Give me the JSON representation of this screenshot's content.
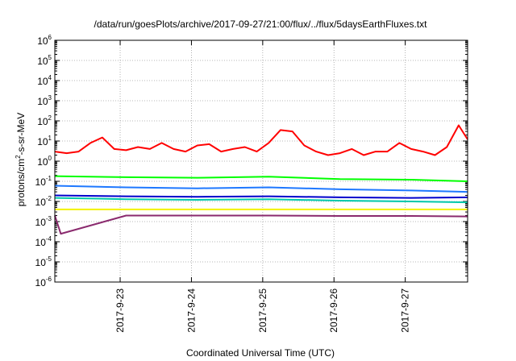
{
  "chart_data": {
    "type": "line",
    "title": "/data/run/goesPlots/archive/2017-09-27/21:00/flux/../flux/5daysEarthFluxes.txt",
    "xlabel": "Coordinated Universal Time (UTC)",
    "ylabel": {
      "pre": "protons/cm",
      "sup": "2",
      "post": "-s-sr-MeV"
    },
    "y_scale": "log",
    "ylim_exponents": [
      -6,
      6
    ],
    "y_ticks": [
      {
        "base": "10",
        "exp": "6"
      },
      {
        "base": "10",
        "exp": "5"
      },
      {
        "base": "10",
        "exp": "4"
      },
      {
        "base": "10",
        "exp": "3"
      },
      {
        "base": "10",
        "exp": "2"
      },
      {
        "base": "10",
        "exp": "1"
      },
      {
        "base": "10",
        "exp": "0"
      },
      {
        "base": "10",
        "exp": "-1"
      },
      {
        "base": "10",
        "exp": "-2"
      },
      {
        "base": "10",
        "exp": "-3"
      },
      {
        "base": "10",
        "exp": "-4"
      },
      {
        "base": "10",
        "exp": "-5"
      },
      {
        "base": "10",
        "exp": "-6"
      }
    ],
    "xlim_days": [
      "2017-09-22 02:00",
      "2017-09-27 21:00"
    ],
    "x_ticks": [
      "2017-9-23",
      "2017-9-24",
      "2017-9-25",
      "2017-9-26",
      "2017-9-27"
    ],
    "grid": true,
    "legend": "none",
    "series": [
      {
        "color": "#ff0000",
        "x": [
          "2017-09-22 02:00",
          "2017-09-22 06:00",
          "2017-09-22 10:00",
          "2017-09-22 14:00",
          "2017-09-22 18:00",
          "2017-09-22 22:00",
          "2017-09-23 02:00",
          "2017-09-23 06:00",
          "2017-09-23 10:00",
          "2017-09-23 14:00",
          "2017-09-23 18:00",
          "2017-09-23 22:00",
          "2017-09-24 02:00",
          "2017-09-24 06:00",
          "2017-09-24 10:00",
          "2017-09-24 14:00",
          "2017-09-24 18:00",
          "2017-09-24 22:00",
          "2017-09-25 02:00",
          "2017-09-25 06:00",
          "2017-09-25 10:00",
          "2017-09-25 14:00",
          "2017-09-25 18:00",
          "2017-09-25 22:00",
          "2017-09-26 02:00",
          "2017-09-26 06:00",
          "2017-09-26 10:00",
          "2017-09-26 14:00",
          "2017-09-26 18:00",
          "2017-09-26 22:00",
          "2017-09-27 02:00",
          "2017-09-27 06:00",
          "2017-09-27 10:00",
          "2017-09-27 14:00",
          "2017-09-27 18:00",
          "2017-09-27 21:00"
        ],
        "values": [
          3,
          2.5,
          3,
          8,
          15,
          4,
          3.5,
          5,
          4,
          8,
          4,
          3,
          6,
          7,
          3,
          4,
          5,
          3,
          8,
          35,
          30,
          6,
          3,
          2,
          2.5,
          4,
          2,
          3,
          3,
          8,
          4,
          3,
          2,
          5,
          60,
          12
        ]
      },
      {
        "color": "#00ff00",
        "x": [
          "2017-09-22 02:00",
          "2017-09-23 02:00",
          "2017-09-24 02:00",
          "2017-09-25 02:00",
          "2017-09-26 02:00",
          "2017-09-27 02:00",
          "2017-09-27 21:00"
        ],
        "values": [
          0.18,
          0.16,
          0.15,
          0.17,
          0.13,
          0.12,
          0.1
        ]
      },
      {
        "color": "#1e78ff",
        "x": [
          "2017-09-22 02:00",
          "2017-09-23 02:00",
          "2017-09-24 02:00",
          "2017-09-25 02:00",
          "2017-09-26 02:00",
          "2017-09-27 02:00",
          "2017-09-27 21:00"
        ],
        "values": [
          0.06,
          0.05,
          0.045,
          0.05,
          0.04,
          0.035,
          0.03
        ]
      },
      {
        "color": "#00c8aa",
        "x": [
          "2017-09-22 02:00",
          "2017-09-23 02:00",
          "2017-09-24 02:00",
          "2017-09-25 02:00",
          "2017-09-26 02:00",
          "2017-09-27 02:00",
          "2017-09-27 21:00"
        ],
        "values": [
          0.015,
          0.013,
          0.012,
          0.013,
          0.011,
          0.01,
          0.009
        ]
      },
      {
        "color": "#0000cc",
        "x": [
          "2017-09-22 02:00",
          "2017-09-23 02:00",
          "2017-09-24 02:00",
          "2017-09-25 02:00",
          "2017-09-26 02:00",
          "2017-09-27 02:00",
          "2017-09-27 21:00"
        ],
        "values": [
          0.02,
          0.018,
          0.017,
          0.018,
          0.016,
          0.015,
          0.016
        ]
      },
      {
        "color": "#f2f200",
        "x": [
          "2017-09-22 02:00",
          "2017-09-23 02:00",
          "2017-09-24 02:00",
          "2017-09-25 02:00",
          "2017-09-26 02:00",
          "2017-09-27 02:00",
          "2017-09-27 21:00"
        ],
        "values": [
          0.004,
          0.004,
          0.004,
          0.004,
          0.004,
          0.004,
          0.004
        ]
      },
      {
        "color": "#8a2a6e",
        "x": [
          "2017-09-22 02:00",
          "2017-09-22 04:00",
          "2017-09-23 02:00",
          "2017-09-24 02:00",
          "2017-09-25 02:00",
          "2017-09-26 02:00",
          "2017-09-27 02:00",
          "2017-09-27 21:00"
        ],
        "values": [
          0.002,
          0.00025,
          0.002,
          0.002,
          0.002,
          0.0019,
          0.0019,
          0.0018
        ]
      }
    ]
  }
}
